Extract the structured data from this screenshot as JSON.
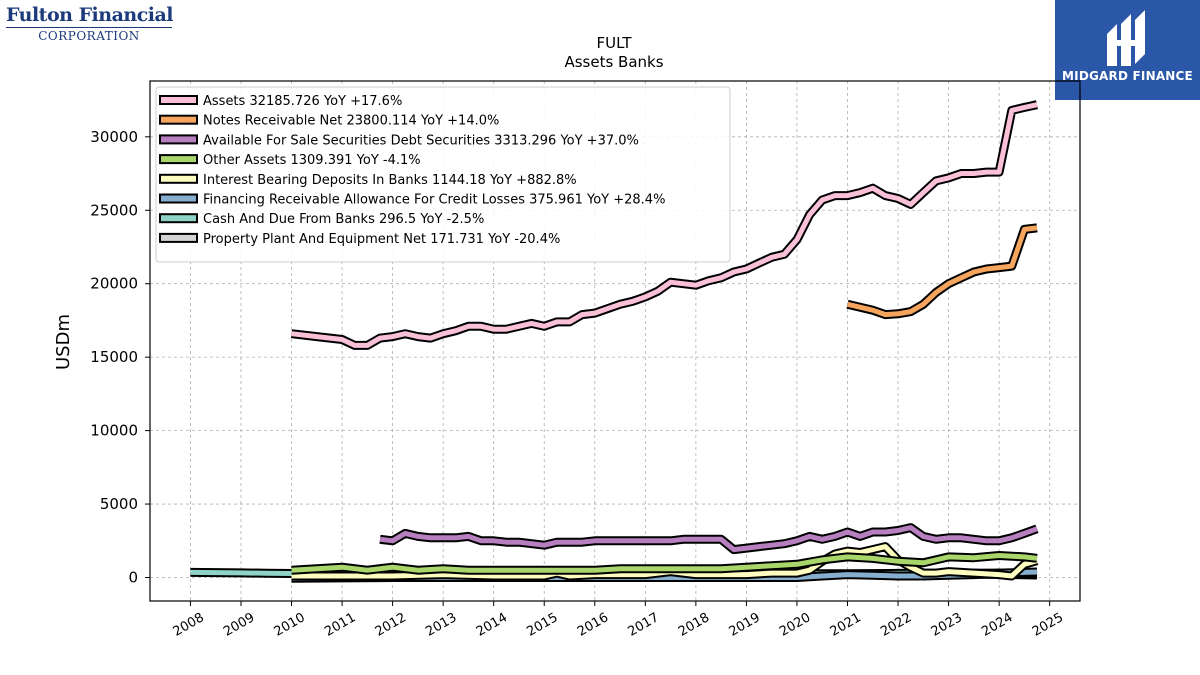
{
  "logos": {
    "left_line1": "Fulton Financial",
    "left_line2": "CORPORATION",
    "right_name": "MIDGARD FINANCE"
  },
  "chart_data": {
    "type": "line",
    "title": "FULT",
    "subtitle": "Assets Banks",
    "ylabel": "USDm",
    "xlabel": "",
    "ylim": [
      -1600,
      33800
    ],
    "xlim": [
      2007.2,
      2025.6
    ],
    "grid": true,
    "legend_position": "top-left",
    "x_ticks": [
      2008,
      2009,
      2010,
      2011,
      2012,
      2013,
      2014,
      2015,
      2016,
      2017,
      2018,
      2019,
      2020,
      2021,
      2022,
      2023,
      2024,
      2025
    ],
    "y_ticks": [
      0,
      5000,
      10000,
      15000,
      20000,
      25000,
      30000
    ],
    "series": [
      {
        "name": "Assets",
        "legend": "Assets  32185.726 YoY +17.6%",
        "color": "#f9c0d8",
        "x": [
          2010.0,
          2010.5,
          2011.0,
          2011.25,
          2011.5,
          2011.75,
          2012.0,
          2012.25,
          2012.5,
          2012.75,
          2013.0,
          2013.25,
          2013.5,
          2013.75,
          2014.0,
          2014.25,
          2014.5,
          2014.75,
          2015.0,
          2015.25,
          2015.5,
          2015.75,
          2016.0,
          2016.25,
          2016.5,
          2016.75,
          2017.0,
          2017.25,
          2017.5,
          2017.75,
          2018.0,
          2018.25,
          2018.5,
          2018.75,
          2019.0,
          2019.25,
          2019.5,
          2019.75,
          2020.0,
          2020.25,
          2020.5,
          2020.75,
          2021.0,
          2021.25,
          2021.5,
          2021.75,
          2022.0,
          2022.25,
          2022.5,
          2022.75,
          2023.0,
          2023.25,
          2023.5,
          2023.75,
          2024.0,
          2024.25,
          2024.5,
          2024.75
        ],
        "values": [
          16600,
          16400,
          16200,
          15800,
          15800,
          16300,
          16400,
          16600,
          16400,
          16300,
          16600,
          16800,
          17100,
          17100,
          16900,
          16900,
          17100,
          17300,
          17100,
          17400,
          17400,
          17900,
          18000,
          18300,
          18600,
          18800,
          19100,
          19500,
          20100,
          20000,
          19900,
          20200,
          20400,
          20800,
          21000,
          21400,
          21800,
          22000,
          23000,
          24700,
          25700,
          26000,
          26000,
          26200,
          26500,
          26000,
          25800,
          25400,
          26200,
          27000,
          27200,
          27500,
          27500,
          27600,
          27600,
          31800,
          32000,
          32186
        ]
      },
      {
        "name": "Notes Receivable Net",
        "legend": "Notes Receivable Net  23800.114 YoY +14.0%",
        "color": "#f6a55e",
        "x": [
          2021.0,
          2021.25,
          2021.5,
          2021.75,
          2022.0,
          2022.25,
          2022.5,
          2022.75,
          2023.0,
          2023.25,
          2023.5,
          2023.75,
          2024.0,
          2024.25,
          2024.5,
          2024.75
        ],
        "values": [
          18600,
          18400,
          18200,
          17900,
          17950,
          18100,
          18600,
          19400,
          20000,
          20400,
          20800,
          21000,
          21100,
          21200,
          23700,
          23800
        ]
      },
      {
        "name": "Available For Sale Securities Debt Securities",
        "legend": "Available For Sale Securities Debt Securities  3313.296 YoY +37.0%",
        "color": "#b77fc0",
        "x": [
          2011.75,
          2012.0,
          2012.25,
          2012.5,
          2012.75,
          2013.0,
          2013.25,
          2013.5,
          2013.75,
          2014.0,
          2014.25,
          2014.5,
          2014.75,
          2015.0,
          2015.25,
          2015.5,
          2015.75,
          2016.0,
          2016.25,
          2016.5,
          2016.75,
          2017.0,
          2017.25,
          2017.5,
          2017.75,
          2018.0,
          2018.25,
          2018.5,
          2018.75,
          2019.0,
          2019.25,
          2019.5,
          2019.75,
          2020.0,
          2020.25,
          2020.5,
          2020.75,
          2021.0,
          2021.25,
          2021.5,
          2021.75,
          2022.0,
          2022.25,
          2022.5,
          2022.75,
          2023.0,
          2023.25,
          2023.5,
          2023.75,
          2024.0,
          2024.25,
          2024.5,
          2024.75
        ],
        "values": [
          2600,
          2500,
          3000,
          2800,
          2700,
          2700,
          2700,
          2800,
          2500,
          2500,
          2400,
          2400,
          2300,
          2200,
          2400,
          2400,
          2400,
          2500,
          2500,
          2500,
          2500,
          2500,
          2500,
          2500,
          2600,
          2600,
          2600,
          2600,
          1900,
          2000,
          2100,
          2200,
          2300,
          2500,
          2800,
          2600,
          2800,
          3100,
          2800,
          3100,
          3100,
          3200,
          3400,
          2800,
          2600,
          2700,
          2700,
          2600,
          2500,
          2500,
          2700,
          3000,
          3313
        ]
      },
      {
        "name": "Other Assets",
        "legend": "Other Assets  1309.391 YoY -4.1%",
        "color": "#a8d66b",
        "x": [
          2010.0,
          2010.5,
          2011.0,
          2011.5,
          2012.0,
          2012.5,
          2013.0,
          2013.5,
          2014.0,
          2014.5,
          2015.0,
          2015.5,
          2016.0,
          2016.5,
          2017.0,
          2017.5,
          2018.0,
          2018.5,
          2019.0,
          2019.5,
          2020.0,
          2020.5,
          2021.0,
          2021.5,
          2022.0,
          2022.5,
          2023.0,
          2023.5,
          2024.0,
          2024.5,
          2024.75
        ],
        "values": [
          500,
          600,
          700,
          500,
          700,
          500,
          600,
          500,
          500,
          500,
          500,
          500,
          500,
          600,
          600,
          600,
          600,
          600,
          700,
          800,
          900,
          1200,
          1400,
          1300,
          1100,
          1000,
          1400,
          1350,
          1500,
          1400,
          1309
        ]
      },
      {
        "name": "Interest Bearing Deposits In Banks",
        "legend": "Interest Bearing Deposits In Banks  1144.18 YoY +882.8%",
        "color": "#fdfdbf",
        "x": [
          2010.0,
          2011.0,
          2012.0,
          2013.0,
          2014.0,
          2015.0,
          2015.25,
          2015.5,
          2016.0,
          2016.5,
          2017.0,
          2017.5,
          2018.0,
          2018.5,
          2019.0,
          2019.5,
          2020.0,
          2020.25,
          2020.5,
          2020.75,
          2021.0,
          2021.25,
          2021.5,
          2021.75,
          2022.0,
          2022.25,
          2022.5,
          2022.75,
          2023.0,
          2023.5,
          2024.0,
          2024.25,
          2024.5,
          2024.75
        ],
        "values": [
          100,
          100,
          100,
          200,
          100,
          100,
          300,
          100,
          200,
          200,
          200,
          400,
          200,
          200,
          200,
          300,
          300,
          500,
          1100,
          1600,
          1800,
          1700,
          1900,
          2100,
          1200,
          700,
          300,
          300,
          400,
          300,
          200,
          100,
          900,
          1144
        ]
      },
      {
        "name": "Financing Receivable Allowance For Credit Losses",
        "legend": "Financing Receivable Allowance For Credit Losses  375.961 YoY +28.4%",
        "color": "#86aecf",
        "x": [
          2010.0,
          2011.0,
          2012.0,
          2013.0,
          2014.0,
          2015.0,
          2016.0,
          2017.0,
          2018.0,
          2019.0,
          2020.0,
          2020.5,
          2021.0,
          2021.5,
          2022.0,
          2022.5,
          2023.0,
          2023.5,
          2024.0,
          2024.75
        ],
        "values": [
          -50,
          -30,
          0,
          0,
          0,
          0,
          0,
          0,
          0,
          0,
          0,
          100,
          200,
          150,
          100,
          100,
          150,
          200,
          300,
          376
        ]
      },
      {
        "name": "Cash And Due From Banks",
        "legend": "Cash And Due From Banks  296.5 YoY -2.5%",
        "color": "#8dd3c7",
        "x": [
          2008.0,
          2008.5,
          2009.0,
          2009.5,
          2010.0,
          2011.0,
          2012.0,
          2013.0,
          2014.0,
          2015.0,
          2016.0,
          2017.0,
          2018.0,
          2019.0,
          2020.0,
          2021.0,
          2022.0,
          2023.0,
          2024.0,
          2024.75
        ],
        "values": [
          350,
          330,
          310,
          290,
          270,
          250,
          260,
          260,
          250,
          240,
          250,
          260,
          260,
          250,
          250,
          260,
          280,
          290,
          300,
          297
        ]
      },
      {
        "name": "Property Plant And Equipment Net",
        "legend": "Property Plant And Equipment Net  171.731 YoY -20.4%",
        "color": "#d5d5d5",
        "x": [
          2010.0,
          2011.0,
          2012.0,
          2013.0,
          2014.0,
          2015.0,
          2016.0,
          2017.0,
          2018.0,
          2019.0,
          2020.0,
          2021.0,
          2022.0,
          2023.0,
          2024.0,
          2024.75
        ],
        "values": [
          100,
          100,
          110,
          120,
          120,
          130,
          140,
          150,
          160,
          170,
          200,
          220,
          230,
          220,
          210,
          172
        ]
      }
    ]
  }
}
